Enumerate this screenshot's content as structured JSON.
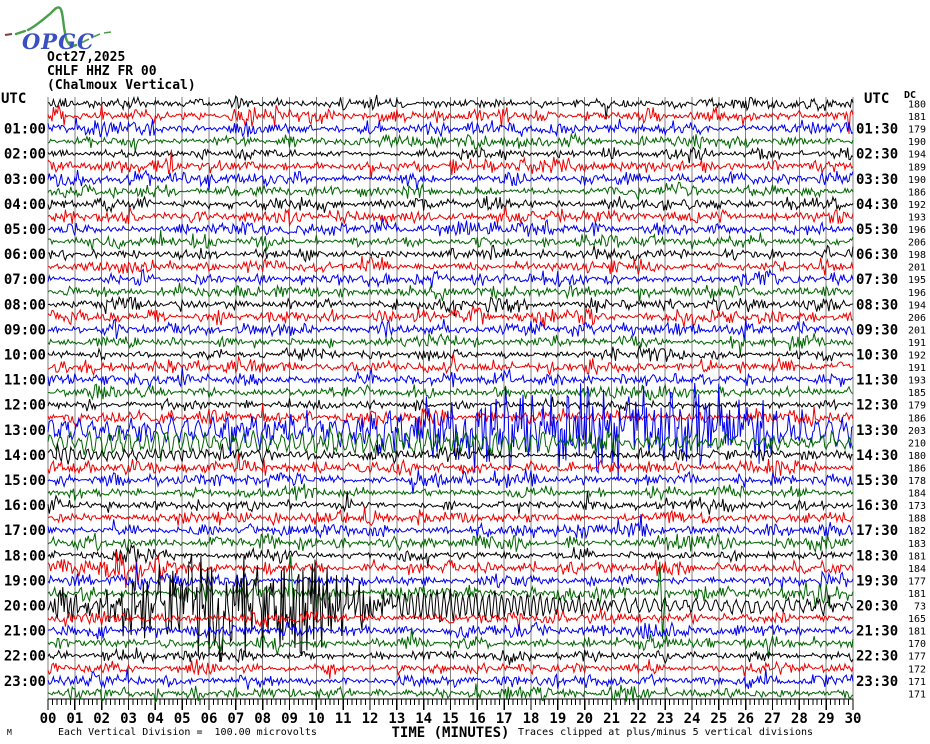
{
  "header": {
    "logo_text": "OPGC",
    "date": "Oct27,2025",
    "station": "CHLF HHZ FR 00",
    "station_name": "(Chalmoux Vertical)"
  },
  "axes": {
    "left_header": "UTC",
    "right_header": "UTC",
    "dc_header": "DC",
    "x_title": "TIME (MINUTES)",
    "x_ticks": [
      "00",
      "01",
      "02",
      "03",
      "04",
      "05",
      "06",
      "07",
      "08",
      "09",
      "10",
      "11",
      "12",
      "13",
      "14",
      "15",
      "16",
      "17",
      "18",
      "19",
      "20",
      "21",
      "22",
      "23",
      "24",
      "25",
      "26",
      "27",
      "28",
      "29",
      "30"
    ],
    "footer_left": "Each Vertical Division =  100.00 microvolts",
    "footer_right": "Traces clipped at plus/minus 5 vertical divisions",
    "footer_mark": "M"
  },
  "chart_data": {
    "type": "line",
    "subtype": "seismogram-helicorder",
    "title": "CHLF HHZ FR 00 (Chalmoux Vertical) Oct27,2025",
    "xlabel": "TIME (MINUTES)",
    "x_range": [
      0,
      30
    ],
    "minutes_per_line": 30,
    "lines_per_hour": 2,
    "clip_divisions": 5,
    "microvolts_per_division": 100.0,
    "grid": true,
    "colors_cycle": [
      "#000000",
      "#ee0000",
      "#0000ee",
      "#006600"
    ],
    "grid_color": "#808080",
    "rows": [
      {
        "ll": "",
        "lr": "",
        "dc": 180,
        "n": 3.0,
        "ev": []
      },
      {
        "ll": "",
        "lr": "",
        "dc": 181,
        "n": 3.4,
        "ev": []
      },
      {
        "ll": "01:00",
        "lr": "01:30",
        "dc": 179,
        "n": 3.4,
        "ev": []
      },
      {
        "ll": "",
        "lr": "",
        "dc": 190,
        "n": 3.0,
        "ev": []
      },
      {
        "ll": "02:00",
        "lr": "02:30",
        "dc": 194,
        "n": 2.6,
        "ev": []
      },
      {
        "ll": "",
        "lr": "",
        "dc": 189,
        "n": 3.3,
        "ev": []
      },
      {
        "ll": "03:00",
        "lr": "03:30",
        "dc": 190,
        "n": 3.4,
        "ev": []
      },
      {
        "ll": "",
        "lr": "",
        "dc": 186,
        "n": 2.9,
        "ev": []
      },
      {
        "ll": "04:00",
        "lr": "04:30",
        "dc": 192,
        "n": 3.1,
        "ev": [
          {
            "k": "burst",
            "t0": 0.3,
            "t1": 1.0,
            "a": 6
          }
        ]
      },
      {
        "ll": "",
        "lr": "",
        "dc": 193,
        "n": 3.5,
        "ev": []
      },
      {
        "ll": "05:00",
        "lr": "05:30",
        "dc": 196,
        "n": 3.3,
        "ev": []
      },
      {
        "ll": "",
        "lr": "",
        "dc": 206,
        "n": 3.0,
        "ev": []
      },
      {
        "ll": "06:00",
        "lr": "06:30",
        "dc": 198,
        "n": 3.0,
        "ev": []
      },
      {
        "ll": "",
        "lr": "",
        "dc": 201,
        "n": 3.4,
        "ev": []
      },
      {
        "ll": "07:00",
        "lr": "07:30",
        "dc": 195,
        "n": 3.2,
        "ev": []
      },
      {
        "ll": "",
        "lr": "",
        "dc": 196,
        "n": 3.0,
        "ev": []
      },
      {
        "ll": "08:00",
        "lr": "08:30",
        "dc": 194,
        "n": 3.3,
        "ev": []
      },
      {
        "ll": "",
        "lr": "",
        "dc": 206,
        "n": 3.8,
        "ev": []
      },
      {
        "ll": "09:00",
        "lr": "09:30",
        "dc": 201,
        "n": 3.5,
        "ev": [
          {
            "k": "burst",
            "t0": 12.3,
            "t1": 13.2,
            "a": 7
          }
        ]
      },
      {
        "ll": "",
        "lr": "",
        "dc": 191,
        "n": 3.0,
        "ev": []
      },
      {
        "ll": "10:00",
        "lr": "10:30",
        "dc": 192,
        "n": 3.0,
        "ev": []
      },
      {
        "ll": "",
        "lr": "",
        "dc": 191,
        "n": 3.4,
        "ev": []
      },
      {
        "ll": "11:00",
        "lr": "11:30",
        "dc": 193,
        "n": 3.3,
        "ev": []
      },
      {
        "ll": "",
        "lr": "",
        "dc": 185,
        "n": 3.0,
        "ev": []
      },
      {
        "ll": "12:00",
        "lr": "12:30",
        "dc": 179,
        "n": 2.3,
        "ev": [
          {
            "k": "burst",
            "t0": 18.3,
            "t1": 19.3,
            "a": 8
          }
        ]
      },
      {
        "ll": "",
        "lr": "",
        "dc": 186,
        "n": 3.4,
        "ev": [
          {
            "k": "burst",
            "t0": 17.4,
            "t1": 20,
            "a": 11
          },
          {
            "k": "burst",
            "t0": 25.8,
            "t1": 30,
            "a": 6
          }
        ]
      },
      {
        "ll": "13:00",
        "lr": "13:30",
        "dc": 203,
        "n": 4.5,
        "ev": [
          {
            "k": "osc",
            "t0": 0,
            "t1": 30,
            "a0": 8,
            "a1": 8,
            "p": 0.5
          },
          {
            "k": "burst",
            "t0": 5,
            "t1": 11.5,
            "a": 14
          },
          {
            "k": "burst",
            "t0": 11.5,
            "t1": 28.5,
            "a": 48
          }
        ]
      },
      {
        "ll": "",
        "lr": "",
        "dc": 210,
        "n": 3.4,
        "ev": [
          {
            "k": "osc",
            "t0": 0,
            "t1": 19,
            "a0": 7.5,
            "a1": 7.5,
            "p": 0.36
          },
          {
            "k": "osc",
            "t0": 19,
            "t1": 30,
            "a0": 4.5,
            "a1": 3.5,
            "p": 0.36
          }
        ]
      },
      {
        "ll": "14:00",
        "lr": "14:30",
        "dc": 180,
        "n": 2.9,
        "ev": [
          {
            "k": "osc",
            "t0": 0,
            "t1": 10,
            "a0": 4,
            "a1": 2.5,
            "p": 0.28
          }
        ]
      },
      {
        "ll": "",
        "lr": "",
        "dc": 186,
        "n": 3.4,
        "ev": [
          {
            "k": "burst",
            "t0": 25,
            "t1": 29,
            "a": 7
          }
        ]
      },
      {
        "ll": "15:00",
        "lr": "15:30",
        "dc": 178,
        "n": 3.2,
        "ev": []
      },
      {
        "ll": "",
        "lr": "",
        "dc": 184,
        "n": 3.0,
        "ev": []
      },
      {
        "ll": "16:00",
        "lr": "16:30",
        "dc": 173,
        "n": 3.0,
        "ev": []
      },
      {
        "ll": "",
        "lr": "",
        "dc": 188,
        "n": 3.2,
        "ev": []
      },
      {
        "ll": "17:00",
        "lr": "17:30",
        "dc": 182,
        "n": 3.2,
        "ev": []
      },
      {
        "ll": "",
        "lr": "",
        "dc": 183,
        "n": 3.3,
        "ev": [
          {
            "k": "spike",
            "t": 1.75,
            "a": 9
          },
          {
            "k": "spike",
            "t": 1.85,
            "a": -7
          }
        ]
      },
      {
        "ll": "18:00",
        "lr": "18:30",
        "dc": 181,
        "n": 3.0,
        "ev": [
          {
            "k": "burst",
            "t0": 1.8,
            "t1": 4.2,
            "a": 9
          }
        ]
      },
      {
        "ll": "",
        "lr": "",
        "dc": 184,
        "n": 3.6,
        "ev": [
          {
            "k": "burst",
            "t0": 0.7,
            "t1": 5.2,
            "a": 15
          }
        ]
      },
      {
        "ll": "19:00",
        "lr": "19:30",
        "dc": 177,
        "n": 3.4,
        "ev": [
          {
            "k": "burst",
            "t0": 0.8,
            "t1": 4.5,
            "a": 7
          }
        ]
      },
      {
        "ll": "",
        "lr": "",
        "dc": 181,
        "n": 3.6,
        "ev": [
          {
            "k": "spike",
            "t": 9.05,
            "a": 40
          },
          {
            "k": "spike",
            "t": 9.12,
            "a": -14
          },
          {
            "k": "spike",
            "t": 22.82,
            "a": 38
          },
          {
            "k": "spike",
            "t": 22.9,
            "a": -50
          },
          {
            "k": "burst",
            "t0": 27.2,
            "t1": 30,
            "a": 15
          }
        ]
      },
      {
        "ll": "20:00",
        "lr": "20:30",
        "dc": 73,
        "n": 2.6,
        "ev": [
          {
            "k": "burst",
            "t0": 0,
            "t1": 1.2,
            "a": 22
          },
          {
            "k": "burst",
            "t0": 1.2,
            "t1": 13,
            "a": 58
          },
          {
            "k": "osc",
            "t0": 13,
            "t1": 21,
            "a0": 15,
            "a1": 6,
            "p": 0.24
          },
          {
            "k": "osc",
            "t0": 21,
            "t1": 30,
            "a0": 6,
            "a1": 4,
            "p": 0.38
          }
        ]
      },
      {
        "ll": "",
        "lr": "",
        "dc": 165,
        "n": 3.6,
        "ev": [
          {
            "k": "burst",
            "t0": 0.3,
            "t1": 2.2,
            "a": 7
          }
        ]
      },
      {
        "ll": "21:00",
        "lr": "21:30",
        "dc": 181,
        "n": 3.4,
        "ev": []
      },
      {
        "ll": "",
        "lr": "",
        "dc": 170,
        "n": 3.2,
        "ev": []
      },
      {
        "ll": "22:00",
        "lr": "22:30",
        "dc": 177,
        "n": 2.8,
        "ev": [
          {
            "k": "burst",
            "t0": 1.2,
            "t1": 5.8,
            "a": 5.5
          }
        ]
      },
      {
        "ll": "",
        "lr": "",
        "dc": 172,
        "n": 3.3,
        "ev": []
      },
      {
        "ll": "23:00",
        "lr": "23:30",
        "dc": 171,
        "n": 3.2,
        "ev": []
      },
      {
        "ll": "",
        "lr": "",
        "dc": 171,
        "n": 3.0,
        "ev": []
      }
    ]
  }
}
